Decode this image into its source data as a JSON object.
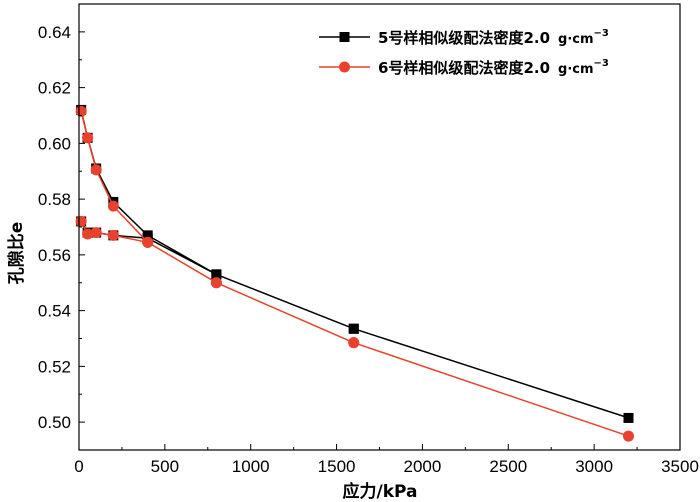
{
  "chart_data": {
    "type": "line",
    "xlabel": "应力/kPa",
    "ylabel": "孔隙比e",
    "xlim": [
      0,
      3500
    ],
    "ylim": [
      0.49,
      0.65
    ],
    "x_ticks": [
      "0",
      "500",
      "1000",
      "1500",
      "2000",
      "2500",
      "3000",
      "3500"
    ],
    "y_ticks": [
      "0.50",
      "0.52",
      "0.54",
      "0.56",
      "0.58",
      "0.60",
      "0.62",
      "0.64"
    ],
    "legend_position": "top-right",
    "series": [
      {
        "name": "5号样相似级配法密度2.0",
        "unit": "g·cm",
        "exponent": "−3",
        "color": "#000000",
        "marker": "square",
        "x": [
          12.5,
          50,
          100,
          200,
          400,
          800,
          1600,
          3200,
          1600,
          800,
          400,
          200,
          100,
          50,
          12.5
        ],
        "y": [
          0.612,
          0.602,
          0.591,
          0.579,
          0.567,
          0.553,
          0.5335,
          0.5015,
          0.5335,
          0.553,
          0.566,
          0.567,
          0.568,
          0.568,
          0.572
        ]
      },
      {
        "name": "6号样相似级配法密度2.0",
        "unit": "g·cm",
        "exponent": "−3",
        "color": "#e8412c",
        "marker": "circle",
        "x": [
          12.5,
          50,
          100,
          200,
          400,
          800,
          1600,
          3200,
          1600,
          800,
          400,
          200,
          100,
          50,
          12.5
        ],
        "y": [
          0.6115,
          0.602,
          0.5905,
          0.5775,
          0.5645,
          0.55,
          0.5285,
          0.495,
          0.5285,
          0.55,
          0.5645,
          0.567,
          0.568,
          0.5675,
          0.572
        ]
      }
    ]
  }
}
